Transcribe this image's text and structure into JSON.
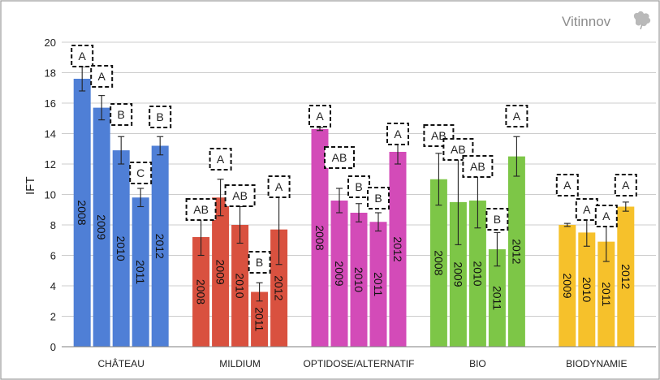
{
  "brand": {
    "name": "Vitinnov",
    "logo_icon": "vine-leaf-icon"
  },
  "chart_data": {
    "type": "bar",
    "ylabel": "IFT",
    "xlabel": "",
    "ylim": [
      0,
      20
    ],
    "yticks": [
      0,
      2,
      4,
      6,
      8,
      10,
      12,
      14,
      16,
      18,
      20
    ],
    "grid": true,
    "categories": [
      "CHÂTEAU",
      "MILDIUM",
      "OPTIDOSE/ALTERNATIF",
      "BIO",
      "BIODYNAMIE"
    ],
    "colors": {
      "CHÂTEAU": "#4f7fd6",
      "MILDIUM": "#d9513f",
      "OPTIDOSE/ALTERNATIF": "#d34bb8",
      "BIO": "#7dc647",
      "BIODYNAMIE": "#f6c12b"
    },
    "groups": [
      {
        "category": "CHÂTEAU",
        "bars": [
          {
            "year": "2008",
            "value": 17.6,
            "err": 0.8,
            "letter": "A"
          },
          {
            "year": "2009",
            "value": 15.7,
            "err": 0.8,
            "letter": "A"
          },
          {
            "year": "2010",
            "value": 12.9,
            "err": 0.9,
            "letter": "B"
          },
          {
            "year": "2011",
            "value": 9.8,
            "err": 0.6,
            "letter": "C"
          },
          {
            "year": "2012",
            "value": 13.2,
            "err": 0.6,
            "letter": "B"
          }
        ]
      },
      {
        "category": "MILDIUM",
        "bars": [
          {
            "year": "2008",
            "value": 7.2,
            "err": 1.2,
            "letter": "AB"
          },
          {
            "year": "2009",
            "value": 9.8,
            "err": 1.2,
            "letter": "A"
          },
          {
            "year": "2010",
            "value": 8.0,
            "err": 1.2,
            "letter": "AB"
          },
          {
            "year": "2011",
            "value": 3.6,
            "err": 0.6,
            "letter": "B"
          },
          {
            "year": "2012",
            "value": 7.7,
            "err": 2.3,
            "letter": "A"
          }
        ]
      },
      {
        "category": "OPTIDOSE/ALTERNATIF",
        "bars": [
          {
            "year": "2008",
            "value": 14.3,
            "err": 0.1,
            "letter": "A"
          },
          {
            "year": "2009",
            "value": 9.6,
            "err": 0.8,
            "letter": "AB"
          },
          {
            "year": "2010",
            "value": 8.8,
            "err": 0.6,
            "letter": "B"
          },
          {
            "year": "2011",
            "value": 8.2,
            "err": 0.6,
            "letter": "B"
          },
          {
            "year": "2012",
            "value": 12.8,
            "err": 0.8,
            "letter": "A"
          }
        ]
      },
      {
        "category": "BIO",
        "bars": [
          {
            "year": "2008",
            "value": 11.0,
            "err": 1.7,
            "letter": "AB"
          },
          {
            "year": "2009",
            "value": 9.5,
            "err": 2.8,
            "letter": "AB"
          },
          {
            "year": "2010",
            "value": 9.6,
            "err": 1.8,
            "letter": "AB"
          },
          {
            "year": "2011",
            "value": 6.4,
            "err": 1.1,
            "letter": "B"
          },
          {
            "year": "2012",
            "value": 12.5,
            "err": 1.3,
            "letter": "A"
          }
        ]
      },
      {
        "category": "BIODYNAMIE",
        "bars": [
          {
            "year": "2009",
            "value": 8.0,
            "err": 0.1,
            "letter": "A"
          },
          {
            "year": "2010",
            "value": 7.5,
            "err": 0.9,
            "letter": "A"
          },
          {
            "year": "2011",
            "value": 6.9,
            "err": 1.3,
            "letter": "A"
          },
          {
            "year": "2012",
            "value": 9.2,
            "err": 0.3,
            "letter": "A"
          }
        ]
      }
    ]
  }
}
